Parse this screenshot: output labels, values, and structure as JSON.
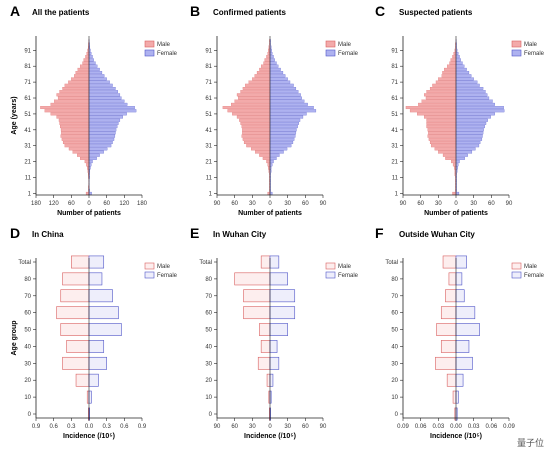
{
  "colors": {
    "male_fill": "#f3aaaa",
    "male_stroke": "#d96060",
    "female_fill": "#aeb2f0",
    "female_stroke": "#4f55c8",
    "axis": "#222222",
    "tick": "#333333"
  },
  "legend": {
    "male": "Male",
    "female": "Female"
  },
  "watermark": "量子位",
  "chart_data": [
    {
      "type": "bar",
      "orientation": "population-pyramid",
      "panel": "A",
      "title": "All the patients",
      "xlabel": "Number of patients",
      "ylabel": "Age (years)",
      "xlim": [
        -180,
        180
      ],
      "xticks": [
        "180",
        "120",
        "60",
        "0",
        "60",
        "120",
        "180"
      ],
      "ylim": [
        0,
        100
      ],
      "yticks": [
        "1",
        "11",
        "21",
        "31",
        "41",
        "51",
        "61",
        "71",
        "81",
        "91"
      ],
      "legend_position": "top-right",
      "categories": [
        1,
        3,
        5,
        7,
        9,
        11,
        13,
        15,
        17,
        19,
        21,
        23,
        25,
        27,
        29,
        31,
        33,
        35,
        37,
        39,
        41,
        43,
        45,
        47,
        49,
        51,
        53,
        55,
        57,
        59,
        61,
        63,
        65,
        67,
        69,
        71,
        73,
        75,
        77,
        79,
        81,
        83,
        85,
        87,
        89,
        91,
        93,
        95,
        97
      ],
      "series": [
        {
          "name": "Male",
          "values": [
            10,
            2,
            2,
            1,
            1,
            2,
            3,
            4,
            6,
            9,
            14,
            30,
            40,
            55,
            68,
            82,
            88,
            92,
            96,
            94,
            95,
            98,
            100,
            102,
            110,
            130,
            150,
            165,
            130,
            118,
            105,
            110,
            100,
            90,
            82,
            70,
            60,
            50,
            45,
            38,
            30,
            22,
            18,
            12,
            8,
            5,
            3,
            2,
            1
          ]
        },
        {
          "name": "Female",
          "values": [
            9,
            2,
            1,
            1,
            1,
            2,
            2,
            3,
            5,
            8,
            12,
            26,
            36,
            50,
            62,
            75,
            80,
            85,
            88,
            90,
            92,
            96,
            100,
            105,
            115,
            128,
            160,
            155,
            130,
            120,
            110,
            105,
            98,
            90,
            80,
            70,
            60,
            52,
            44,
            36,
            28,
            22,
            16,
            12,
            8,
            5,
            3,
            2,
            1
          ]
        }
      ]
    },
    {
      "type": "bar",
      "orientation": "population-pyramid",
      "panel": "B",
      "title": "Confirmed patients",
      "xlabel": "Number of patients",
      "ylabel": "",
      "xlim": [
        -90,
        90
      ],
      "xticks": [
        "90",
        "60",
        "30",
        "0",
        "30",
        "60",
        "90"
      ],
      "ylim": [
        0,
        100
      ],
      "yticks": [
        "1",
        "11",
        "21",
        "31",
        "41",
        "51",
        "61",
        "71",
        "81",
        "91"
      ],
      "legend_position": "top-right",
      "categories": [
        1,
        3,
        5,
        7,
        9,
        11,
        13,
        15,
        17,
        19,
        21,
        23,
        25,
        27,
        29,
        31,
        33,
        35,
        37,
        39,
        41,
        43,
        45,
        47,
        49,
        51,
        53,
        55,
        57,
        59,
        61,
        63,
        65,
        67,
        69,
        71,
        73,
        75,
        77,
        79,
        81,
        83,
        85,
        87,
        89,
        91,
        93,
        95,
        97
      ],
      "series": [
        {
          "name": "Male",
          "values": [
            4,
            1,
            1,
            1,
            1,
            1,
            1,
            2,
            3,
            4,
            6,
            12,
            18,
            25,
            32,
            40,
            44,
            46,
            48,
            47,
            47,
            48,
            50,
            52,
            56,
            64,
            72,
            80,
            66,
            60,
            54,
            56,
            50,
            46,
            42,
            36,
            30,
            26,
            22,
            18,
            15,
            11,
            9,
            6,
            4,
            3,
            2,
            1,
            1
          ]
        },
        {
          "name": "Female",
          "values": [
            4,
            1,
            1,
            1,
            1,
            1,
            1,
            2,
            2,
            4,
            6,
            11,
            16,
            23,
            29,
            36,
            39,
            41,
            43,
            44,
            45,
            47,
            49,
            51,
            56,
            62,
            78,
            74,
            64,
            58,
            54,
            52,
            48,
            44,
            40,
            34,
            30,
            26,
            22,
            18,
            14,
            11,
            8,
            6,
            4,
            3,
            2,
            1,
            1
          ]
        }
      ]
    },
    {
      "type": "bar",
      "orientation": "population-pyramid",
      "panel": "C",
      "title": "Suspected patients",
      "xlabel": "Number of patients",
      "ylabel": "",
      "xlim": [
        -90,
        90
      ],
      "xticks": [
        "90",
        "60",
        "30",
        "0",
        "30",
        "60",
        "90"
      ],
      "ylim": [
        0,
        100
      ],
      "yticks": [
        "1",
        "11",
        "21",
        "31",
        "41",
        "51",
        "61",
        "71",
        "81",
        "91"
      ],
      "legend_position": "top-right",
      "categories": [
        1,
        3,
        5,
        7,
        9,
        11,
        13,
        15,
        17,
        19,
        21,
        23,
        25,
        27,
        29,
        31,
        33,
        35,
        37,
        39,
        41,
        43,
        45,
        47,
        49,
        51,
        53,
        55,
        57,
        59,
        61,
        63,
        65,
        67,
        69,
        71,
        73,
        75,
        77,
        79,
        81,
        83,
        85,
        87,
        89,
        91,
        93,
        95,
        97
      ],
      "series": [
        {
          "name": "Male",
          "values": [
            6,
            1,
            1,
            1,
            1,
            1,
            2,
            2,
            3,
            5,
            8,
            18,
            22,
            30,
            36,
            42,
            44,
            46,
            48,
            47,
            48,
            50,
            50,
            50,
            54,
            66,
            78,
            85,
            64,
            58,
            51,
            54,
            50,
            44,
            40,
            34,
            30,
            24,
            23,
            20,
            15,
            11,
            9,
            6,
            4,
            2,
            1,
            1,
            0
          ]
        },
        {
          "name": "Female",
          "values": [
            5,
            1,
            1,
            1,
            1,
            1,
            1,
            2,
            3,
            4,
            6,
            15,
            20,
            27,
            33,
            39,
            41,
            44,
            45,
            46,
            47,
            49,
            51,
            54,
            59,
            66,
            82,
            81,
            66,
            62,
            56,
            53,
            50,
            46,
            40,
            36,
            30,
            26,
            22,
            18,
            14,
            11,
            8,
            6,
            4,
            2,
            1,
            1,
            0
          ]
        }
      ]
    },
    {
      "type": "bar",
      "orientation": "population-pyramid",
      "panel": "D",
      "title": "In China",
      "xlabel": "Incidence (/10⁵)",
      "ylabel": "Age group",
      "xlim": [
        -0.9,
        0.9
      ],
      "xticks": [
        "0.9",
        "0.6",
        "0.3",
        "0.0",
        "0.3",
        "0.6",
        "0.9"
      ],
      "yticks": [
        "0",
        "10",
        "20",
        "30",
        "40",
        "50",
        "60",
        "70",
        "80",
        "Total"
      ],
      "legend_position": "top-right",
      "categories": [
        "0",
        "10",
        "20",
        "30",
        "40",
        "50",
        "60",
        "70",
        "80",
        "Total"
      ],
      "series": [
        {
          "name": "Male",
          "values": [
            0.01,
            0.03,
            0.22,
            0.45,
            0.38,
            0.48,
            0.55,
            0.48,
            0.45,
            0.3
          ]
        },
        {
          "name": "Female",
          "values": [
            0.01,
            0.04,
            0.16,
            0.3,
            0.25,
            0.55,
            0.5,
            0.4,
            0.22,
            0.25
          ]
        }
      ]
    },
    {
      "type": "bar",
      "orientation": "population-pyramid",
      "panel": "E",
      "title": "In Wuhan City",
      "xlabel": "Incidence (/10⁵)",
      "ylabel": "",
      "xlim": [
        -90,
        90
      ],
      "xticks": [
        "90",
        "60",
        "30",
        "0",
        "30",
        "60",
        "90"
      ],
      "yticks": [
        "0",
        "10",
        "20",
        "30",
        "40",
        "50",
        "60",
        "70",
        "80",
        "Total"
      ],
      "legend_position": "top-right",
      "categories": [
        "0",
        "10",
        "20",
        "30",
        "40",
        "50",
        "60",
        "70",
        "80",
        "Total"
      ],
      "series": [
        {
          "name": "Male",
          "values": [
            1,
            2,
            5,
            20,
            15,
            18,
            45,
            45,
            60,
            15
          ]
        },
        {
          "name": "Female",
          "values": [
            1,
            2,
            5,
            15,
            12,
            30,
            42,
            42,
            30,
            15
          ]
        }
      ]
    },
    {
      "type": "bar",
      "orientation": "population-pyramid",
      "panel": "F",
      "title": "Outside Wuhan City",
      "xlabel": "Incidence (/10⁵)",
      "ylabel": "",
      "xlim": [
        -0.09,
        0.09
      ],
      "xticks": [
        "0.09",
        "0.06",
        "0.03",
        "0.00",
        "0.03",
        "0.06",
        "0.09"
      ],
      "yticks": [
        "0",
        "10",
        "20",
        "30",
        "40",
        "50",
        "60",
        "70",
        "80",
        "Total"
      ],
      "legend_position": "top-right",
      "categories": [
        "0",
        "10",
        "20",
        "30",
        "40",
        "50",
        "60",
        "70",
        "80",
        "Total"
      ],
      "series": [
        {
          "name": "Male",
          "values": [
            0.002,
            0.005,
            0.015,
            0.035,
            0.025,
            0.033,
            0.025,
            0.018,
            0.012,
            0.022
          ]
        },
        {
          "name": "Female",
          "values": [
            0.002,
            0.004,
            0.012,
            0.028,
            0.022,
            0.04,
            0.032,
            0.014,
            0.01,
            0.018
          ]
        }
      ]
    }
  ]
}
